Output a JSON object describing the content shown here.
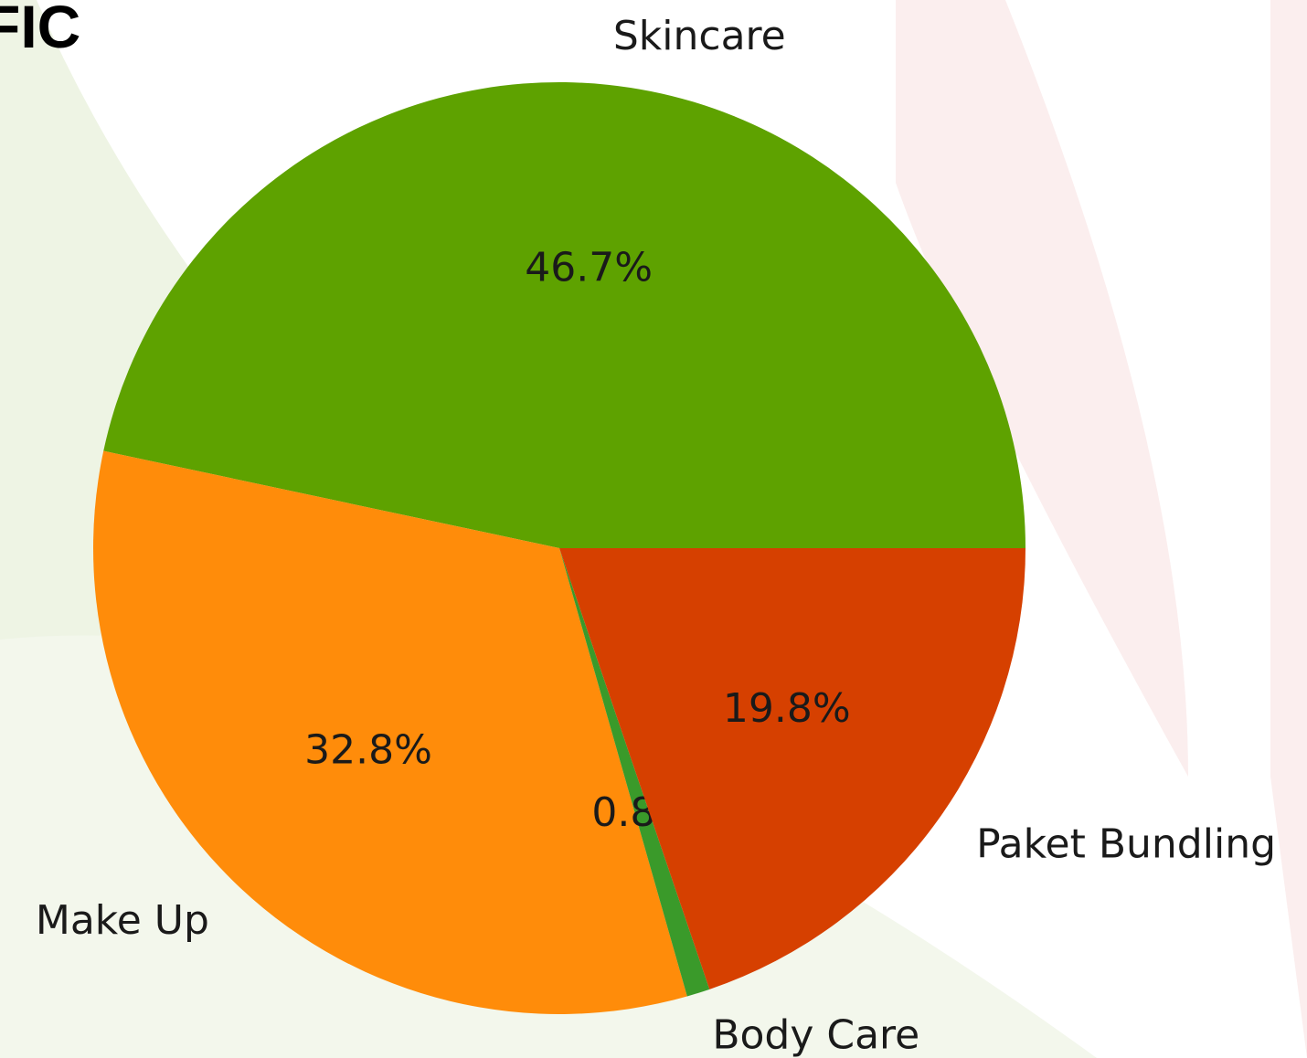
{
  "page": {
    "heading": "FIC"
  },
  "chart_data": {
    "type": "pie",
    "categories": [
      "Skincare",
      "Make Up",
      "Body Care",
      "Paket Bundling"
    ],
    "values": [
      46.7,
      32.8,
      0.8,
      19.8
    ],
    "value_labels": [
      "46.7%",
      "32.8%",
      "0.8%",
      "19.8%"
    ],
    "colors": [
      "#5ea200",
      "#ff8c0a",
      "#3a9a2a",
      "#d64000"
    ],
    "start_angle": 0,
    "direction": "counterclockwise"
  }
}
